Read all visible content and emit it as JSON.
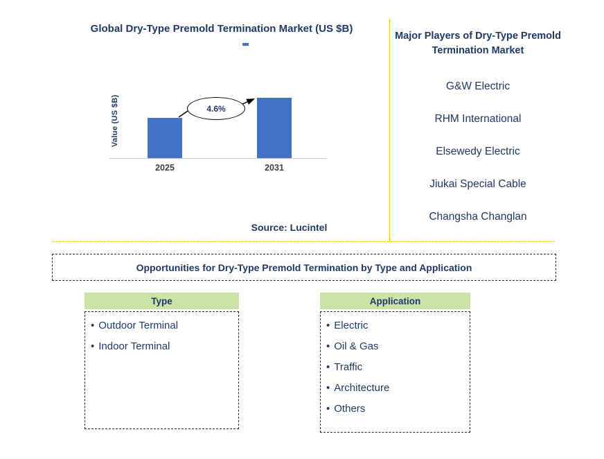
{
  "chart": {
    "title": "Global Dry-Type Premold Termination Market (US $B)",
    "ylabel": "Value (US $B)",
    "cagr": "4.6%",
    "source": "Source: Lucintel"
  },
  "chart_data": {
    "type": "bar",
    "title": "Global Dry-Type Premold Termination Market (US $B)",
    "categories": [
      "2025",
      "2031"
    ],
    "values": [
      58,
      87
    ],
    "values_note": "relative bar heights; axis has no numeric tick labels",
    "xlabel": "",
    "ylabel": "Value (US $B)",
    "grid": false,
    "legend_position": "none",
    "annotations": [
      {
        "text": "4.6%",
        "shape": "oval-with-arrow-to-2031-bar"
      }
    ],
    "bar_color": "#4472C4"
  },
  "players": {
    "title": "Major Players of Dry-Type Premold Termination Market",
    "items": [
      "G&W Electric",
      "RHM International",
      "Elsewedy Electric",
      "Jiukai Special Cable",
      "Changsha Changlan"
    ]
  },
  "opportunities": {
    "title": "Opportunities for Dry-Type Premold Termination by Type and Application",
    "columns": [
      {
        "header": "Type",
        "items": [
          "Outdoor Terminal",
          "Indoor Terminal"
        ]
      },
      {
        "header": "Application",
        "items": [
          "Electric",
          "Oil & Gas",
          "Traffic",
          "Architecture",
          "Others"
        ]
      }
    ]
  },
  "colors": {
    "heading_navy": "#1F3864",
    "bar_blue": "#4472C4",
    "header_green": "#C9E4A5",
    "divider_gold": "#FFC000"
  }
}
